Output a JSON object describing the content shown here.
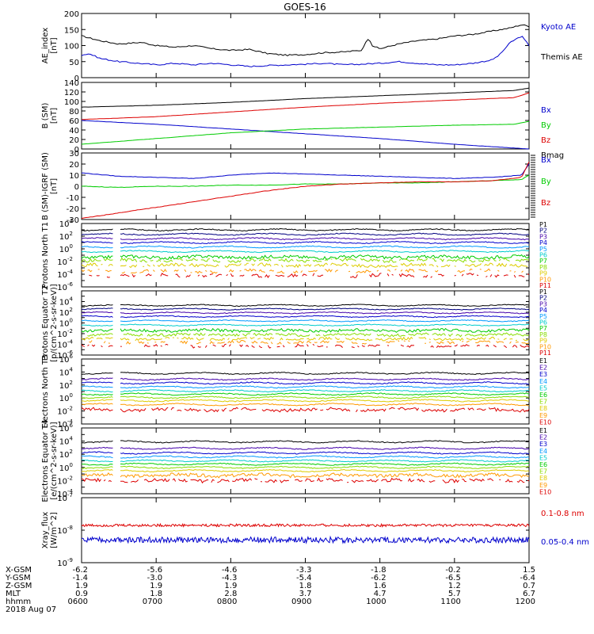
{
  "title": "GOES-16",
  "colors": {
    "black": "#000000",
    "blue": "#0000cc",
    "red": "#dd0000",
    "green": "#00cc00",
    "navy": "#000080",
    "purple": "#660099",
    "indigo": "#4400aa",
    "sky": "#0099ff",
    "cyan": "#00cccc",
    "lime": "#88dd00",
    "gold": "#ddcc00",
    "orange": "#ff9900",
    "darkred": "#aa0000"
  },
  "time_axis": {
    "ticks": [
      "0600",
      "0700",
      "0800",
      "0900",
      "1000",
      "1100",
      "1200"
    ],
    "x_hours": [
      6.0,
      12.0
    ]
  },
  "footer": {
    "labels": [
      "X-GSM",
      "Y-GSM",
      "Z-GSM",
      "MLT",
      "hhmm",
      "2018 Aug 07"
    ],
    "rows": [
      [
        "-6.2",
        "-5.6",
        "-4.6",
        "-3.3",
        "-1.8",
        "-0.2",
        "1.5"
      ],
      [
        "-1.4",
        "-3.0",
        "-4.3",
        "-5.4",
        "-6.2",
        "-6.5",
        "-6.4"
      ],
      [
        "1.9",
        "1.9",
        "1.9",
        "1.8",
        "1.6",
        "1.2",
        "0.7"
      ],
      [
        "0.9",
        "1.8",
        "2.8",
        "3.7",
        "4.7",
        "5.7",
        "6.7"
      ],
      [
        "0600",
        "0700",
        "0800",
        "0900",
        "1000",
        "1100",
        "1200"
      ]
    ]
  },
  "chart_data": [
    {
      "type": "line",
      "ylabel": "AE_index [nT]",
      "ylim": [
        0,
        200
      ],
      "ytick_labels": [
        "200",
        "150",
        "100",
        "50",
        "0"
      ],
      "legend": [
        {
          "label": "Kyoto AE",
          "color": "#0000cc"
        },
        {
          "label": "Themis AE",
          "color": "#000000"
        }
      ],
      "series": [
        {
          "name": "Themis AE",
          "color": "#000000",
          "x": [
            6.0,
            6.25,
            6.5,
            6.8,
            7.0,
            7.25,
            7.5,
            7.75,
            8.0,
            8.25,
            8.5,
            8.75,
            9.0,
            9.25,
            9.5,
            9.75,
            9.85,
            9.9,
            10.0,
            10.25,
            10.5,
            10.75,
            11.0,
            11.25,
            11.5,
            11.75,
            11.9,
            12.0
          ],
          "y": [
            130,
            115,
            105,
            110,
            100,
            95,
            100,
            90,
            85,
            88,
            75,
            70,
            72,
            78,
            80,
            85,
            125,
            100,
            90,
            105,
            115,
            120,
            130,
            135,
            145,
            155,
            165,
            160
          ]
        },
        {
          "name": "Kyoto AE",
          "color": "#0000cc",
          "x": [
            6.0,
            6.1,
            6.25,
            6.5,
            6.75,
            7.0,
            7.25,
            7.5,
            7.75,
            8.0,
            8.25,
            8.5,
            8.75,
            9.0,
            9.25,
            9.5,
            9.75,
            10.0,
            10.25,
            10.5,
            10.75,
            11.0,
            11.25,
            11.5,
            11.6,
            11.75,
            11.9,
            12.0
          ],
          "y": [
            70,
            75,
            60,
            50,
            45,
            40,
            45,
            40,
            45,
            40,
            35,
            38,
            40,
            42,
            45,
            40,
            42,
            45,
            50,
            45,
            40,
            40,
            45,
            55,
            70,
            110,
            130,
            100
          ]
        }
      ]
    },
    {
      "type": "line",
      "ylabel": "B (SM) [nT]",
      "ylim": [
        0,
        140
      ],
      "ytick_labels": [
        "140",
        "120",
        "100",
        "80",
        "60",
        "40",
        "20",
        "0"
      ],
      "legend": [
        {
          "label": "Bx",
          "color": "#0000cc"
        },
        {
          "label": "By",
          "color": "#00cc00"
        },
        {
          "label": "Bz",
          "color": "#dd0000"
        },
        {
          "label": "Bmag",
          "color": "#000000"
        }
      ],
      "series": [
        {
          "name": "Bmag",
          "color": "#000000",
          "x": [
            6,
            7,
            8,
            9,
            10,
            11,
            11.8,
            12
          ],
          "y": [
            88,
            92,
            98,
            106,
            112,
            118,
            123,
            128
          ]
        },
        {
          "name": "Bz",
          "color": "#dd0000",
          "x": [
            6,
            7,
            8,
            9,
            10,
            11,
            11.8,
            12
          ],
          "y": [
            62,
            68,
            78,
            88,
            96,
            103,
            108,
            118
          ]
        },
        {
          "name": "Bx",
          "color": "#0000cc",
          "x": [
            6,
            7,
            8,
            9,
            10,
            11,
            11.8,
            12
          ],
          "y": [
            60,
            52,
            42,
            32,
            22,
            10,
            2,
            0
          ]
        },
        {
          "name": "By",
          "color": "#00cc00",
          "x": [
            6,
            7,
            8,
            9,
            10,
            11,
            11.8,
            12
          ],
          "y": [
            10,
            22,
            34,
            42,
            46,
            50,
            52,
            58
          ]
        }
      ]
    },
    {
      "type": "line",
      "ylabel": "B (SM)-IGRF (SM) [nT]",
      "ylim": [
        -30,
        30
      ],
      "ytick_labels": [
        "30",
        "20",
        "10",
        "0",
        "-10",
        "-20",
        "-30"
      ],
      "legend": [
        {
          "label": "Bx",
          "color": "#0000cc"
        },
        {
          "label": "By",
          "color": "#00cc00"
        },
        {
          "label": "Bz",
          "color": "#dd0000"
        }
      ],
      "series": [
        {
          "name": "Bx",
          "color": "#0000cc",
          "x": [
            6,
            6.5,
            7,
            7.5,
            8,
            8.5,
            9,
            9.5,
            10,
            10.5,
            11,
            11.5,
            11.9,
            12
          ],
          "y": [
            12,
            9,
            8,
            7,
            10,
            12,
            11,
            10,
            9,
            8,
            7,
            8,
            10,
            20
          ]
        },
        {
          "name": "By",
          "color": "#00cc00",
          "x": [
            6,
            6.5,
            7,
            7.5,
            8,
            8.5,
            9,
            9.5,
            10,
            10.5,
            11,
            11.5,
            11.9,
            12
          ],
          "y": [
            0,
            -1,
            0,
            0,
            1,
            1,
            2,
            2,
            3,
            3,
            4,
            5,
            6,
            10
          ]
        },
        {
          "name": "Bz",
          "color": "#dd0000",
          "x": [
            6,
            6.5,
            7,
            7.5,
            8,
            8.5,
            9,
            9.5,
            10,
            10.5,
            11,
            11.5,
            11.9,
            12
          ],
          "y": [
            -29,
            -24,
            -19,
            -14,
            -9,
            -4,
            0,
            2,
            3,
            4,
            4,
            5,
            8,
            22
          ]
        }
      ]
    },
    {
      "type": "line",
      "ylabel": "Protons North T1",
      "yscale": "log",
      "ylim_exp": [
        -6,
        4
      ],
      "ytick_labels": [
        "10^4",
        "10^2",
        "10^0",
        "10^-2",
        "10^-4",
        "10^-6"
      ],
      "legend_names": [
        "P1",
        "P2",
        "P3",
        "P4",
        "P5",
        "P6",
        "P7",
        "P8",
        "P9",
        "P10",
        "P11"
      ],
      "legend_colors": [
        "#000000",
        "#000080",
        "#4400aa",
        "#0000cc",
        "#0099ff",
        "#00cccc",
        "#00cc00",
        "#88dd00",
        "#ddcc00",
        "#ff9900",
        "#dd0000"
      ],
      "series_log10_levels": [
        3.0,
        2.3,
        1.6,
        1.0,
        0.3,
        -0.4,
        -1.3,
        -1.8,
        -2.6,
        -3.5,
        -4.2
      ],
      "data_gap_hours": [
        6.42,
        6.5
      ]
    },
    {
      "type": "line",
      "ylabel": "Protons Equator T2 [p/(cm^2-s-sr-keV)]",
      "yscale": "log",
      "ylim_exp": [
        -6,
        6
      ],
      "ytick_labels": [
        "10^4",
        "10^2",
        "10^0",
        "10^-2",
        "10^-4",
        "10^-6"
      ],
      "legend_names": [
        "P1",
        "P2",
        "P3",
        "P4",
        "P5",
        "P6",
        "P7",
        "P8",
        "P9",
        "P10",
        "P11"
      ],
      "legend_colors": [
        "#000000",
        "#000080",
        "#4400aa",
        "#0000cc",
        "#0099ff",
        "#00cccc",
        "#00cc00",
        "#88dd00",
        "#ddcc00",
        "#ff9900",
        "#dd0000"
      ],
      "series_log10_levels": [
        3.3,
        2.6,
        1.9,
        1.2,
        0.4,
        -0.4,
        -1.4,
        -2.2,
        -3.0,
        -3.6,
        -4.3
      ],
      "data_gap_hours": [
        6.42,
        6.5
      ]
    },
    {
      "type": "line",
      "ylabel": "Electrons North T3",
      "yscale": "log",
      "ylim_exp": [
        -4,
        6
      ],
      "ytick_labels": [
        "10^6",
        "10^4",
        "10^2",
        "10^0",
        "10^-2",
        "10^-4"
      ],
      "legend_names": [
        "E1",
        "E2",
        "E3",
        "E4",
        "E5",
        "E6",
        "E7",
        "E8",
        "E9",
        "E10"
      ],
      "legend_colors": [
        "#000000",
        "#4400aa",
        "#0000cc",
        "#0099ff",
        "#00cccc",
        "#00cc00",
        "#88dd00",
        "#ddcc00",
        "#ff9900",
        "#dd0000"
      ],
      "series_log10_levels": [
        3.8,
        2.9,
        2.3,
        1.7,
        1.1,
        0.6,
        0.1,
        -0.4,
        -1.0,
        -1.8
      ],
      "data_gap_hours": [
        6.42,
        6.5
      ]
    },
    {
      "type": "line",
      "ylabel": "Electrons Equator T4 [e/(cm^2-s-sr-keV)]",
      "yscale": "log",
      "ylim_exp": [
        -4,
        6
      ],
      "ytick_labels": [
        "10^6",
        "10^4",
        "10^2",
        "10^0",
        "10^-2",
        "10^-4"
      ],
      "legend_names": [
        "E1",
        "E2",
        "E3",
        "E4",
        "E5",
        "E6",
        "E7",
        "E8",
        "E9",
        "E10"
      ],
      "legend_colors": [
        "#000000",
        "#4400aa",
        "#0000cc",
        "#0099ff",
        "#00cccc",
        "#00cc00",
        "#88dd00",
        "#ddcc00",
        "#ff9900",
        "#dd0000"
      ],
      "series_log10_levels": [
        3.9,
        2.9,
        2.2,
        1.6,
        1.0,
        0.5,
        0.0,
        -0.5,
        -1.2,
        -2.0
      ],
      "data_gap_hours": [
        6.42,
        6.5
      ]
    },
    {
      "type": "line",
      "ylabel": "Xray_flux [W/m^2]",
      "yscale": "log",
      "ylim_exp": [
        -9,
        -7
      ],
      "ytick_labels": [
        "10^-7",
        "10^-8",
        "10^-9"
      ],
      "legend": [
        {
          "label": "0.1-0.8 nm",
          "color": "#dd0000"
        },
        {
          "label": "0.05-0.4 nm",
          "color": "#0000cc"
        }
      ],
      "series_log10_levels": [
        -7.85,
        -8.3
      ]
    }
  ]
}
